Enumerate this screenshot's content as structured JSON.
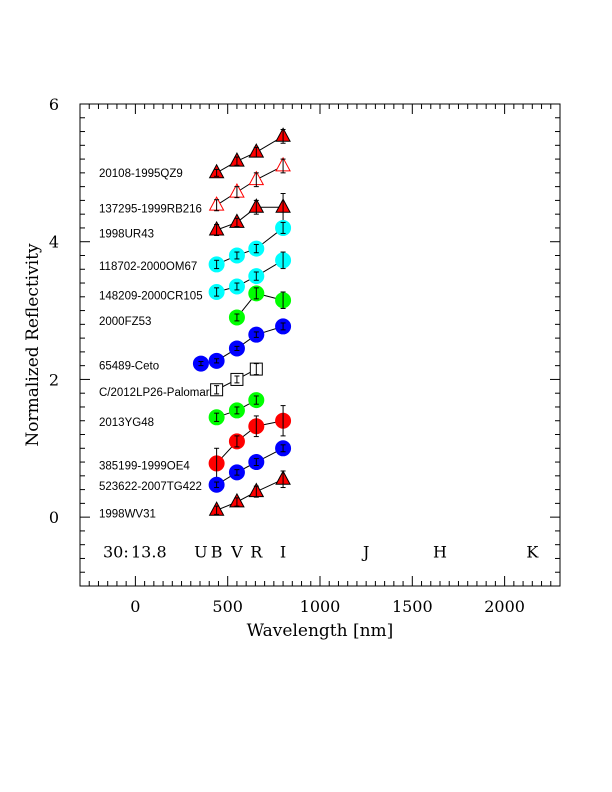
{
  "chart_data": {
    "type": "scatter",
    "xlabel": "Wavelength [nm]",
    "ylabel": "Normalized Reflectivity",
    "xlim": [
      -300,
      2300
    ],
    "ylim": [
      -1,
      6
    ],
    "xticks": [
      0,
      500,
      1000,
      1500,
      2000
    ],
    "yticks": [
      0,
      2,
      4,
      6
    ],
    "grid": false,
    "colors": {
      "red": "#ff0000",
      "cyan": "#00ffff",
      "green": "#00ff00",
      "blue": "#0000ff",
      "black": "#000000"
    },
    "header": {
      "number": "30:",
      "magnitude": "13.8"
    },
    "bands": [
      {
        "name": "U",
        "x": 355
      },
      {
        "name": "B",
        "x": 440
      },
      {
        "name": "V",
        "x": 550
      },
      {
        "name": "R",
        "x": 655
      },
      {
        "name": "I",
        "x": 800
      },
      {
        "name": "J",
        "x": 1250
      },
      {
        "name": "H",
        "x": 1650
      },
      {
        "name": "K",
        "x": 2150
      }
    ],
    "series": [
      {
        "name": "20108-1995QZ9",
        "label_y": 5.0,
        "marker": "triangle",
        "filled": true,
        "color": "red",
        "x": [
          440,
          550,
          655,
          800
        ],
        "y": [
          5.0,
          5.17,
          5.3,
          5.53
        ],
        "err": [
          0.05,
          0.06,
          0.07,
          0.1
        ]
      },
      {
        "name": "137295-1999RB216",
        "label_y": 4.48,
        "marker": "triangle",
        "filled": false,
        "color": "red",
        "x": [
          440,
          550,
          655,
          800
        ],
        "y": [
          4.53,
          4.72,
          4.9,
          5.1
        ],
        "err": [
          0.08,
          0.08,
          0.1,
          0.1
        ]
      },
      {
        "name": "1998UR43",
        "label_y": 4.12,
        "marker": "triangle",
        "filled": true,
        "color": "red",
        "x": [
          440,
          550,
          655,
          800
        ],
        "y": [
          4.17,
          4.28,
          4.5,
          4.5
        ],
        "err": [
          0.08,
          0.06,
          0.1,
          0.2
        ]
      },
      {
        "name": "118702-2000OM67",
        "label_y": 3.65,
        "marker": "circle",
        "filled": true,
        "color": "cyan",
        "x": [
          440,
          550,
          655,
          800
        ],
        "y": [
          3.67,
          3.8,
          3.9,
          4.2
        ],
        "err": [
          0.06,
          0.05,
          0.06,
          0.08
        ]
      },
      {
        "name": "148209-2000CR105",
        "label_y": 3.22,
        "marker": "circle",
        "filled": true,
        "color": "cyan",
        "x": [
          440,
          550,
          655,
          800
        ],
        "y": [
          3.27,
          3.35,
          3.5,
          3.73
        ],
        "err": [
          0.06,
          0.05,
          0.06,
          0.12
        ]
      },
      {
        "name": "2000FZ53",
        "label_y": 2.85,
        "marker": "circle",
        "filled": true,
        "color": "green",
        "x": [
          550,
          655,
          800
        ],
        "y": [
          2.9,
          3.25,
          3.15
        ],
        "err": [
          0.05,
          0.08,
          0.12
        ]
      },
      {
        "name": "65489-Ceto",
        "label_y": 2.2,
        "marker": "circle",
        "filled": true,
        "color": "blue",
        "x": [
          355,
          440,
          550,
          655,
          800
        ],
        "y": [
          2.23,
          2.27,
          2.45,
          2.65,
          2.77
        ],
        "err": [
          0.03,
          0.03,
          0.03,
          0.04,
          0.05
        ]
      },
      {
        "name": "C/2012LP26-Palomar",
        "label_y": 1.82,
        "marker": "square",
        "filled": false,
        "color": "black",
        "x": [
          440,
          550,
          655
        ],
        "y": [
          1.85,
          2.0,
          2.15
        ],
        "err": [
          0.06,
          0.05,
          0.08
        ]
      },
      {
        "name": "2013YG48",
        "label_y": 1.38,
        "marker": "circle",
        "filled": true,
        "color": "green",
        "x": [
          440,
          550,
          655
        ],
        "y": [
          1.45,
          1.55,
          1.7
        ],
        "err": [
          0.06,
          0.05,
          0.06
        ]
      },
      {
        "name": "385199-1999OE4",
        "label_y": 0.75,
        "marker": "circle",
        "filled": true,
        "color": "red",
        "x": [
          440,
          550,
          655,
          800
        ],
        "y": [
          0.78,
          1.1,
          1.32,
          1.4
        ],
        "err": [
          0.22,
          0.08,
          0.15,
          0.22
        ]
      },
      {
        "name": "523622-2007TG422",
        "label_y": 0.45,
        "marker": "circle",
        "filled": true,
        "color": "blue",
        "x": [
          440,
          550,
          655,
          800
        ],
        "y": [
          0.47,
          0.65,
          0.8,
          1.0
        ],
        "err": [
          0.04,
          0.04,
          0.05,
          0.05
        ]
      },
      {
        "name": "1998WV31",
        "label_y": 0.05,
        "marker": "triangle",
        "filled": true,
        "color": "red",
        "x": [
          440,
          550,
          655,
          800
        ],
        "y": [
          0.1,
          0.22,
          0.37,
          0.55
        ],
        "err": [
          0.06,
          0.06,
          0.08,
          0.12
        ]
      }
    ]
  }
}
